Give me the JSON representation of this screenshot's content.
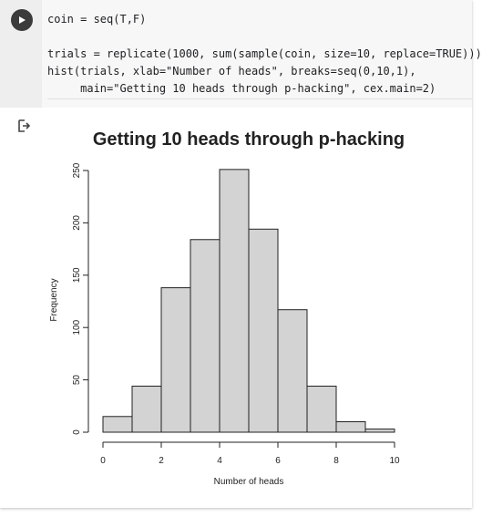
{
  "code": {
    "lines": [
      "coin = seq(T,F)",
      "",
      "trials = replicate(1000, sum(sample(coin, size=10, replace=TRUE)))",
      "hist(trials, xlab=\"Number of heads\", breaks=seq(0,10,1),",
      "     main=\"Getting 10 heads through p-hacking\", cex.main=2)"
    ]
  },
  "chart_data": {
    "type": "bar",
    "title": "Getting 10 heads through p-hacking",
    "xlabel": "Number of heads",
    "ylabel": "Frequency",
    "bins": [
      [
        0,
        1
      ],
      [
        1,
        2
      ],
      [
        2,
        3
      ],
      [
        3,
        4
      ],
      [
        4,
        5
      ],
      [
        5,
        6
      ],
      [
        6,
        7
      ],
      [
        7,
        8
      ],
      [
        8,
        9
      ],
      [
        9,
        10
      ]
    ],
    "values": [
      15,
      44,
      138,
      184,
      251,
      194,
      117,
      44,
      10,
      3
    ],
    "xlim": [
      0,
      10
    ],
    "ylim": [
      0,
      250
    ],
    "x_ticks": [
      0,
      2,
      4,
      6,
      8,
      10
    ],
    "y_ticks": [
      0,
      50,
      100,
      150,
      200,
      250
    ],
    "bar_color": "#d3d3d3",
    "grid": false
  }
}
